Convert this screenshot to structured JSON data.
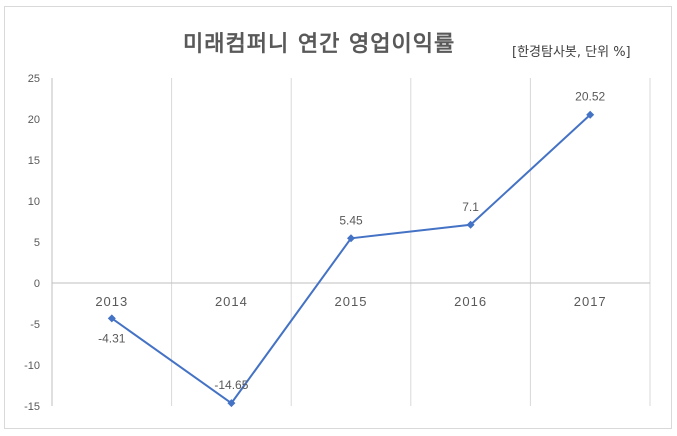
{
  "chart_data": {
    "type": "line",
    "title": "미래컴퍼니 연간 영업이익률",
    "subtitle": "[한경탐사봇, 단위 %]",
    "categories": [
      "2013",
      "2014",
      "2015",
      "2016",
      "2017"
    ],
    "series": [
      {
        "values": [
          -4.31,
          -14.65,
          5.45,
          7.1,
          20.52
        ],
        "data_labels": [
          "-4.31",
          "-14.65",
          "5.45",
          "7.1",
          "20.52"
        ]
      }
    ],
    "yticks": [
      "25",
      "20",
      "15",
      "10",
      "5",
      "0",
      "-5",
      "-10",
      "-15"
    ],
    "ylim": [
      -15,
      25
    ],
    "grid": "vertical",
    "line_color": "#4472c4"
  }
}
